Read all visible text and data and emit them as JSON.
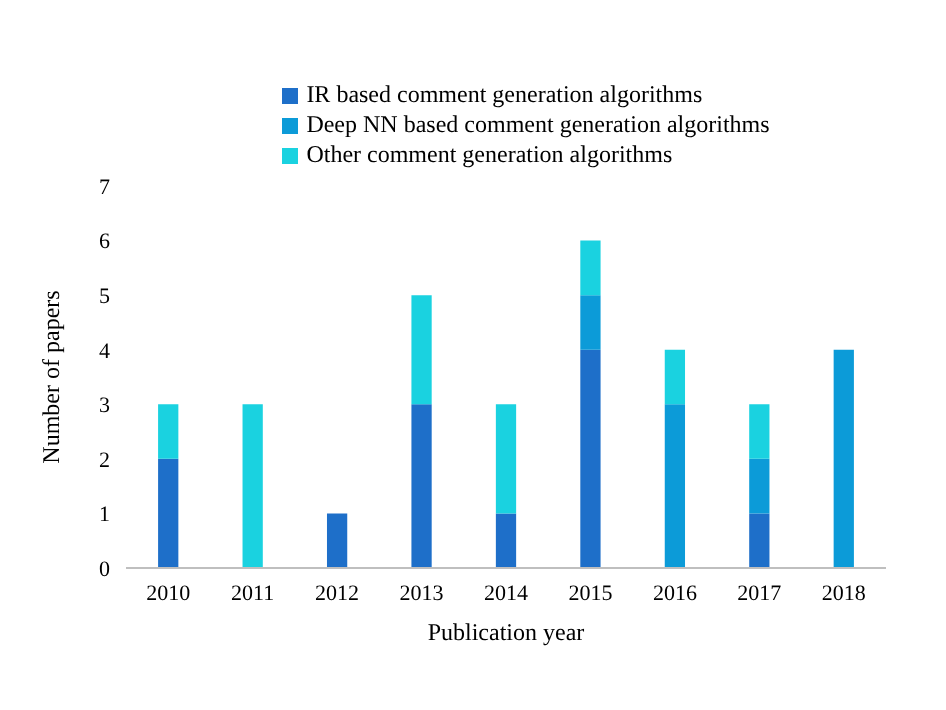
{
  "chart_data": {
    "type": "bar",
    "stacked": true,
    "xlabel": "Publication year",
    "ylabel": "Number of papers",
    "categories": [
      "2010",
      "2011",
      "2012",
      "2013",
      "2014",
      "2015",
      "2016",
      "2017",
      "2018"
    ],
    "series": [
      {
        "name": "IR based comment generation algorithms",
        "color": "#1e6fc9",
        "values": [
          2,
          0,
          1,
          3,
          1,
          4,
          0,
          1,
          0
        ]
      },
      {
        "name": "Deep NN based comment generation algorithms",
        "color": "#0c9bd8",
        "values": [
          0,
          0,
          0,
          0,
          0,
          1,
          3,
          1,
          4
        ]
      },
      {
        "name": "Other comment generation algorithms",
        "color": "#1ad2e0",
        "values": [
          1,
          3,
          0,
          2,
          2,
          1,
          1,
          1,
          0
        ]
      }
    ],
    "ylim": [
      0,
      7
    ],
    "yticks": [
      0,
      1,
      2,
      3,
      4,
      5,
      6,
      7
    ],
    "grid": false,
    "legend": "top"
  }
}
